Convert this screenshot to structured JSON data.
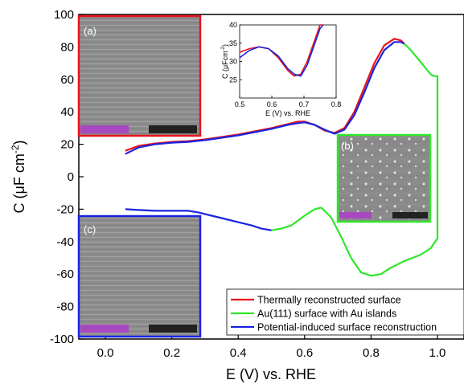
{
  "chart_data": {
    "type": "line",
    "xlabel": "E (V) vs. RHE",
    "ylabel_main": "C (μF cm",
    "ylabel_sup": "-2",
    "ylabel_close": ")",
    "xlim": [
      -0.08,
      1.08
    ],
    "ylim": [
      -100,
      100
    ],
    "xticks": [
      0.0,
      0.2,
      0.4,
      0.6,
      0.8,
      1.0
    ],
    "xtick_labels": [
      "0.0",
      "0.2",
      "0.4",
      "0.6",
      "0.8",
      "1.0"
    ],
    "yticks": [
      -100,
      -80,
      -60,
      -40,
      -20,
      0,
      20,
      40,
      60,
      80,
      100
    ],
    "ytick_labels": [
      "-100",
      "-80",
      "-60",
      "-40",
      "-20",
      "0",
      "20",
      "40",
      "60",
      "80",
      "100"
    ],
    "colors": {
      "red": "#e8141c",
      "green": "#2ee82a",
      "blue": "#1a23e0"
    },
    "series": [
      {
        "name": "Thermally reconstructed surface",
        "color": "#e8141c",
        "x": [
          0.06,
          0.1,
          0.15,
          0.2,
          0.25,
          0.3,
          0.35,
          0.4,
          0.45,
          0.5,
          0.55,
          0.58,
          0.6,
          0.63,
          0.66,
          0.69,
          0.72,
          0.75,
          0.78,
          0.81,
          0.84,
          0.87,
          0.89,
          0.9
        ],
        "y": [
          16,
          19,
          20.5,
          21.5,
          22,
          23,
          24.5,
          26,
          28,
          30,
          32.5,
          34,
          34,
          32,
          28.5,
          27,
          30,
          40,
          55,
          70,
          81,
          85,
          84,
          82
        ]
      },
      {
        "name": "Au(111) surface with Au islands",
        "color": "#2ee82a",
        "x": [
          0.9,
          0.92,
          0.94,
          0.96,
          0.98,
          0.99,
          1.0,
          1.0,
          1.0,
          0.98,
          0.95,
          0.9,
          0.86,
          0.83,
          0.8,
          0.77,
          0.74,
          0.71,
          0.68,
          0.65,
          0.63,
          0.6,
          0.56,
          0.53,
          0.5
        ],
        "y": [
          82,
          78,
          73,
          68,
          63,
          62,
          62,
          20,
          -38,
          -44,
          -48,
          -52,
          -56,
          -60,
          -61,
          -59,
          -50,
          -37,
          -25,
          -19,
          -20,
          -24,
          -30,
          -32,
          -33
        ]
      },
      {
        "name": "Potential-induced surface reconstruction",
        "color": "#1a23e0",
        "x": [
          0.06,
          0.1,
          0.15,
          0.2,
          0.25,
          0.3,
          0.35,
          0.4,
          0.45,
          0.5,
          0.55,
          0.58,
          0.6,
          0.63,
          0.66,
          0.69,
          0.72,
          0.75,
          0.78,
          0.81,
          0.84,
          0.87,
          0.89,
          0.9
        ],
        "y": [
          14,
          18,
          20,
          21,
          21.5,
          22.5,
          24,
          25.5,
          27.5,
          29.5,
          32,
          33,
          33.5,
          32,
          29,
          26.5,
          29,
          38,
          52,
          67,
          78,
          83,
          83,
          82
        ]
      },
      {
        "name": "",
        "color": "#1a23e0",
        "x": [
          0.06,
          0.1,
          0.15,
          0.2,
          0.25,
          0.28,
          0.32,
          0.36,
          0.4,
          0.44,
          0.47,
          0.5
        ],
        "y": [
          -20,
          -20.5,
          -21,
          -21,
          -21,
          -22,
          -24,
          -26,
          -28,
          -30,
          -32,
          -33
        ]
      }
    ],
    "legend": {
      "placement": "bottom-right",
      "entries": [
        {
          "label": "Thermally reconstructed surface",
          "color": "#e8141c"
        },
        {
          "label": "Au(111) surface with Au islands",
          "color": "#2ee82a"
        },
        {
          "label": "Potential-induced surface reconstruction",
          "color": "#1a23e0"
        }
      ]
    },
    "inset": {
      "xlim": [
        0.5,
        0.8
      ],
      "ylim": [
        20,
        40
      ],
      "xticks": [
        0.5,
        0.6,
        0.7,
        0.8
      ],
      "xtick_labels": [
        "0.5",
        "0.6",
        "0.7",
        "0.8"
      ],
      "yticks": [
        25,
        30,
        35,
        40
      ],
      "ytick_labels": [
        "25",
        "30",
        "35",
        "40"
      ],
      "xlabel": "E (V) vs. RHE",
      "ylabel_main": "C (μFcm",
      "ylabel_sup": "-2",
      "ylabel_close": ")",
      "series": [
        {
          "color": "#e8141c",
          "x": [
            0.5,
            0.53,
            0.56,
            0.59,
            0.62,
            0.65,
            0.67,
            0.69,
            0.71,
            0.73,
            0.75,
            0.76
          ],
          "y": [
            32.5,
            33.5,
            34,
            33.5,
            31,
            27.5,
            26,
            26.5,
            30,
            35,
            40,
            41
          ]
        },
        {
          "color": "#1a23e0",
          "x": [
            0.5,
            0.53,
            0.56,
            0.59,
            0.62,
            0.65,
            0.67,
            0.69,
            0.71,
            0.73,
            0.75,
            0.76
          ],
          "y": [
            31,
            33,
            34,
            33.5,
            31.5,
            28,
            26.5,
            26,
            29,
            34,
            39,
            41
          ]
        }
      ]
    }
  },
  "panels": {
    "a": {
      "label": "(a)",
      "border": "#e8141c"
    },
    "b": {
      "label": "(b)",
      "border": "#2ee82a"
    },
    "c": {
      "label": "(c)",
      "border": "#1a23e0"
    }
  }
}
